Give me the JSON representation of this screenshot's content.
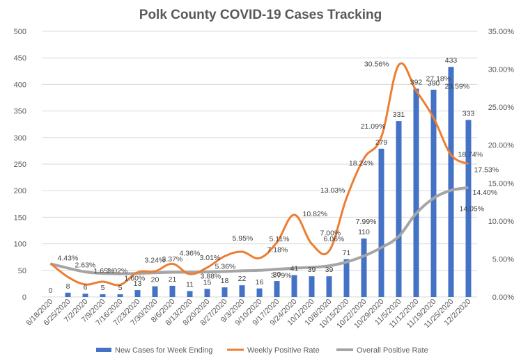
{
  "chart_data": {
    "type": "bar",
    "title": "Polk County COVID-19 Cases Tracking",
    "categories": [
      "6/18/2020",
      "6/25/2020",
      "7/2/2020",
      "7/9/2020",
      "7/16/2020",
      "7/23/2020",
      "7/30/2020",
      "8/6/2020",
      "8/13/2020",
      "8/20/2020",
      "8/27/2020",
      "9/3/2020",
      "9/10/2020",
      "9/17/2020",
      "9/24/2020",
      "10/1/2020",
      "10/8/2020",
      "10/15/2020",
      "10/22/2020",
      "10/29/2020",
      "11/5/2020",
      "11/12/2020",
      "11/19/2020",
      "11/25/2020",
      "12/2/2020"
    ],
    "ylim": [
      0,
      500
    ],
    "y2lim": [
      0,
      0.35
    ],
    "y_ticks": [
      "0",
      "50",
      "100",
      "150",
      "200",
      "250",
      "300",
      "350",
      "400",
      "450",
      "500"
    ],
    "y2_ticks": [
      "0.00%",
      "5.00%",
      "10.00%",
      "15.00%",
      "20.00%",
      "25.00%",
      "30.00%",
      "35.00%"
    ],
    "colors": {
      "bars": "#4472C4",
      "weekly": "#ED7D31",
      "overall": "#A5A5A5",
      "grid": "#D9D9D9",
      "text": "#595959"
    },
    "series": [
      {
        "name": "New Cases for Week Ending",
        "type": "bar",
        "axis": "left",
        "values": [
          0,
          8,
          6,
          5,
          5,
          13,
          20,
          21,
          11,
          15,
          18,
          22,
          16,
          30,
          41,
          39,
          39,
          71,
          110,
          279,
          331,
          392,
          390,
          433,
          333
        ],
        "labels": [
          "0",
          "8",
          "6",
          "5",
          "5",
          "13",
          "20",
          "21",
          "11",
          "15",
          "18",
          "22",
          "16",
          "30",
          "41",
          "39",
          "39",
          "71",
          "110",
          "279",
          "331",
          "392",
          "390",
          "433",
          "333"
        ]
      },
      {
        "name": "Weekly Positive Rate",
        "type": "line",
        "axis": "right",
        "values": [
          0.0443,
          0.0263,
          0.0165,
          0.0202,
          0.016,
          0.0324,
          0.0337,
          0.0436,
          0.0301,
          0.0388,
          0.0536,
          0.0595,
          0.0511,
          0.0718,
          0.1082,
          0.07,
          0.0606,
          0.1303,
          0.1824,
          0.2109,
          0.3056,
          0.2718,
          0.2359,
          0.1874,
          0.1753
        ],
        "labels": [
          "4.43%",
          "2.63%",
          "1.65%",
          "2.02%",
          "1.60%",
          "3.24%",
          "3.37%",
          "4.36%",
          "3.01%",
          "3.88%",
          "5.36%",
          "5.95%",
          "5.11%",
          "7.18%",
          "10.82%",
          "7.00%",
          "6.06%",
          "13.03%",
          "18.24%",
          "21.09%",
          "30.56%",
          "27.18%",
          "23.59%",
          "18.74%",
          "17.53%"
        ]
      },
      {
        "name": "Overall Positive Rate",
        "type": "line",
        "axis": "right",
        "values": [
          0.0437,
          0.038,
          0.033,
          0.031,
          0.0305,
          0.031,
          0.0318,
          0.0325,
          0.0325,
          0.033,
          0.0335,
          0.0345,
          0.035,
          0.0365,
          0.0379,
          0.039,
          0.041,
          0.046,
          0.054,
          0.065,
          0.0799,
          0.11,
          0.13,
          0.1405,
          0.144
        ],
        "labels": [
          "",
          "",
          "",
          "",
          "",
          "",
          "",
          "",
          "",
          "",
          "",
          "",
          "",
          "",
          "3.79%",
          "",
          "",
          "",
          "",
          "",
          "7.99%",
          "",
          "",
          "14.05%",
          "14.40%"
        ]
      }
    ]
  }
}
